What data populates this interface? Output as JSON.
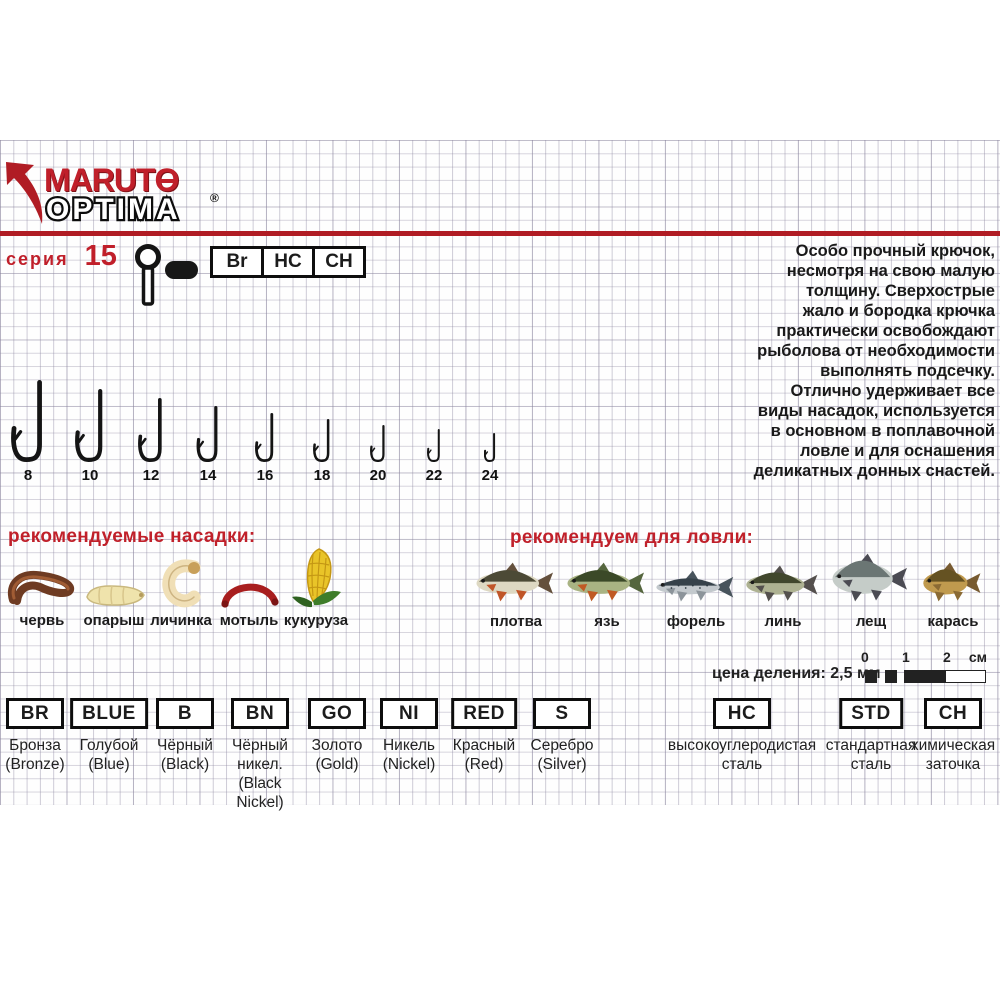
{
  "brand": {
    "name": "MARUTO",
    "sub": "OPTIMA",
    "reg": "®"
  },
  "series": {
    "label": "серия",
    "number": "15"
  },
  "spec_codes": [
    "Br",
    "HC",
    "CH"
  ],
  "description": {
    "lines": [
      "Особо прочный крючок,",
      "несмотря на свою малую",
      "толщину. Сверхострые",
      "жало и бородка крючка",
      "практически освобождают",
      "рыболова от необходимости",
      "выполнять подсечку.",
      "Отлично удерживает все",
      "виды насадок, используется",
      "в основном в поплавочной",
      "ловле и для оснашения",
      "деликатных донных снастей."
    ]
  },
  "hooks": {
    "sizes": [
      "8",
      "10",
      "12",
      "14",
      "16",
      "18",
      "20",
      "22",
      "24"
    ]
  },
  "baits": {
    "title": "рекомендуемые насадки:",
    "items": [
      {
        "name": "червь",
        "icon": "worm-icon"
      },
      {
        "name": "опарыш",
        "icon": "maggot-icon"
      },
      {
        "name": "личинка",
        "icon": "larva-icon"
      },
      {
        "name": "мотыль",
        "icon": "bloodworm-icon"
      },
      {
        "name": "кукуруза",
        "icon": "corn-icon"
      }
    ]
  },
  "fish": {
    "title": "рекомендуем для ловли:",
    "items": [
      {
        "name": "плотва",
        "icon": "roach-fish-icon",
        "shape": "mid",
        "body": "#ddd8c2",
        "back": "#4c4a36",
        "fin": "#c05528",
        "tail": "#64503c"
      },
      {
        "name": "язь",
        "icon": "ide-fish-icon",
        "shape": "mid",
        "body": "#a9b383",
        "back": "#3b4928",
        "fin": "#c05a24",
        "tail": "#55663e"
      },
      {
        "name": "форель",
        "icon": "trout-fish-icon",
        "shape": "slim",
        "body": "#c3c9cd",
        "back": "#36424a",
        "fin": "#8c949a",
        "tail": "#48545c"
      },
      {
        "name": "линь",
        "icon": "tench-fish-icon",
        "shape": "mid",
        "body": "#aeb292",
        "back": "#41472d",
        "fin": "#54504d",
        "tail": "#54504d"
      },
      {
        "name": "лещ",
        "icon": "bream-fish-icon",
        "shape": "tall",
        "body": "#c5ccc8",
        "back": "#6b7674",
        "fin": "#4b4b53",
        "tail": "#4b4b53"
      },
      {
        "name": "карась",
        "icon": "crucian-fish-icon",
        "shape": "round",
        "body": "#c09a4e",
        "back": "#655222",
        "fin": "#8a6a34",
        "tail": "#775a30"
      }
    ]
  },
  "scale": {
    "label": "цена деления: 2,5 мм",
    "ticks": [
      "0",
      "1",
      "2"
    ],
    "unit": "см"
  },
  "codes": [
    {
      "code": "BR",
      "label_lines": [
        "Бронза",
        "(Bronze)"
      ]
    },
    {
      "code": "BLUE",
      "label_lines": [
        "Голубой",
        "(Blue)"
      ]
    },
    {
      "code": "B",
      "label_lines": [
        "Чёрный",
        "(Black)"
      ]
    },
    {
      "code": "BN",
      "label_lines": [
        "Чёрный",
        "никел.",
        "(Black",
        "Nickel)"
      ]
    },
    {
      "code": "GO",
      "label_lines": [
        "Золото",
        "(Gold)"
      ]
    },
    {
      "code": "NI",
      "label_lines": [
        "Никель",
        "(Nickel)"
      ]
    },
    {
      "code": "RED",
      "label_lines": [
        "Красный",
        "(Red)"
      ]
    },
    {
      "code": "S",
      "label_lines": [
        "Серебро",
        "(Silver)"
      ]
    },
    {
      "code": "HC",
      "label_lines": [
        "высокоуглеродистая",
        "сталь"
      ]
    },
    {
      "code": "STD",
      "label_lines": [
        "стандартная",
        "сталь"
      ]
    },
    {
      "code": "CH",
      "label_lines": [
        "химическая",
        "заточка"
      ]
    }
  ],
  "colors": {
    "accent_red": "#b01c24",
    "logo_red": "#c01f2a",
    "ink": "#1c1c1c"
  }
}
